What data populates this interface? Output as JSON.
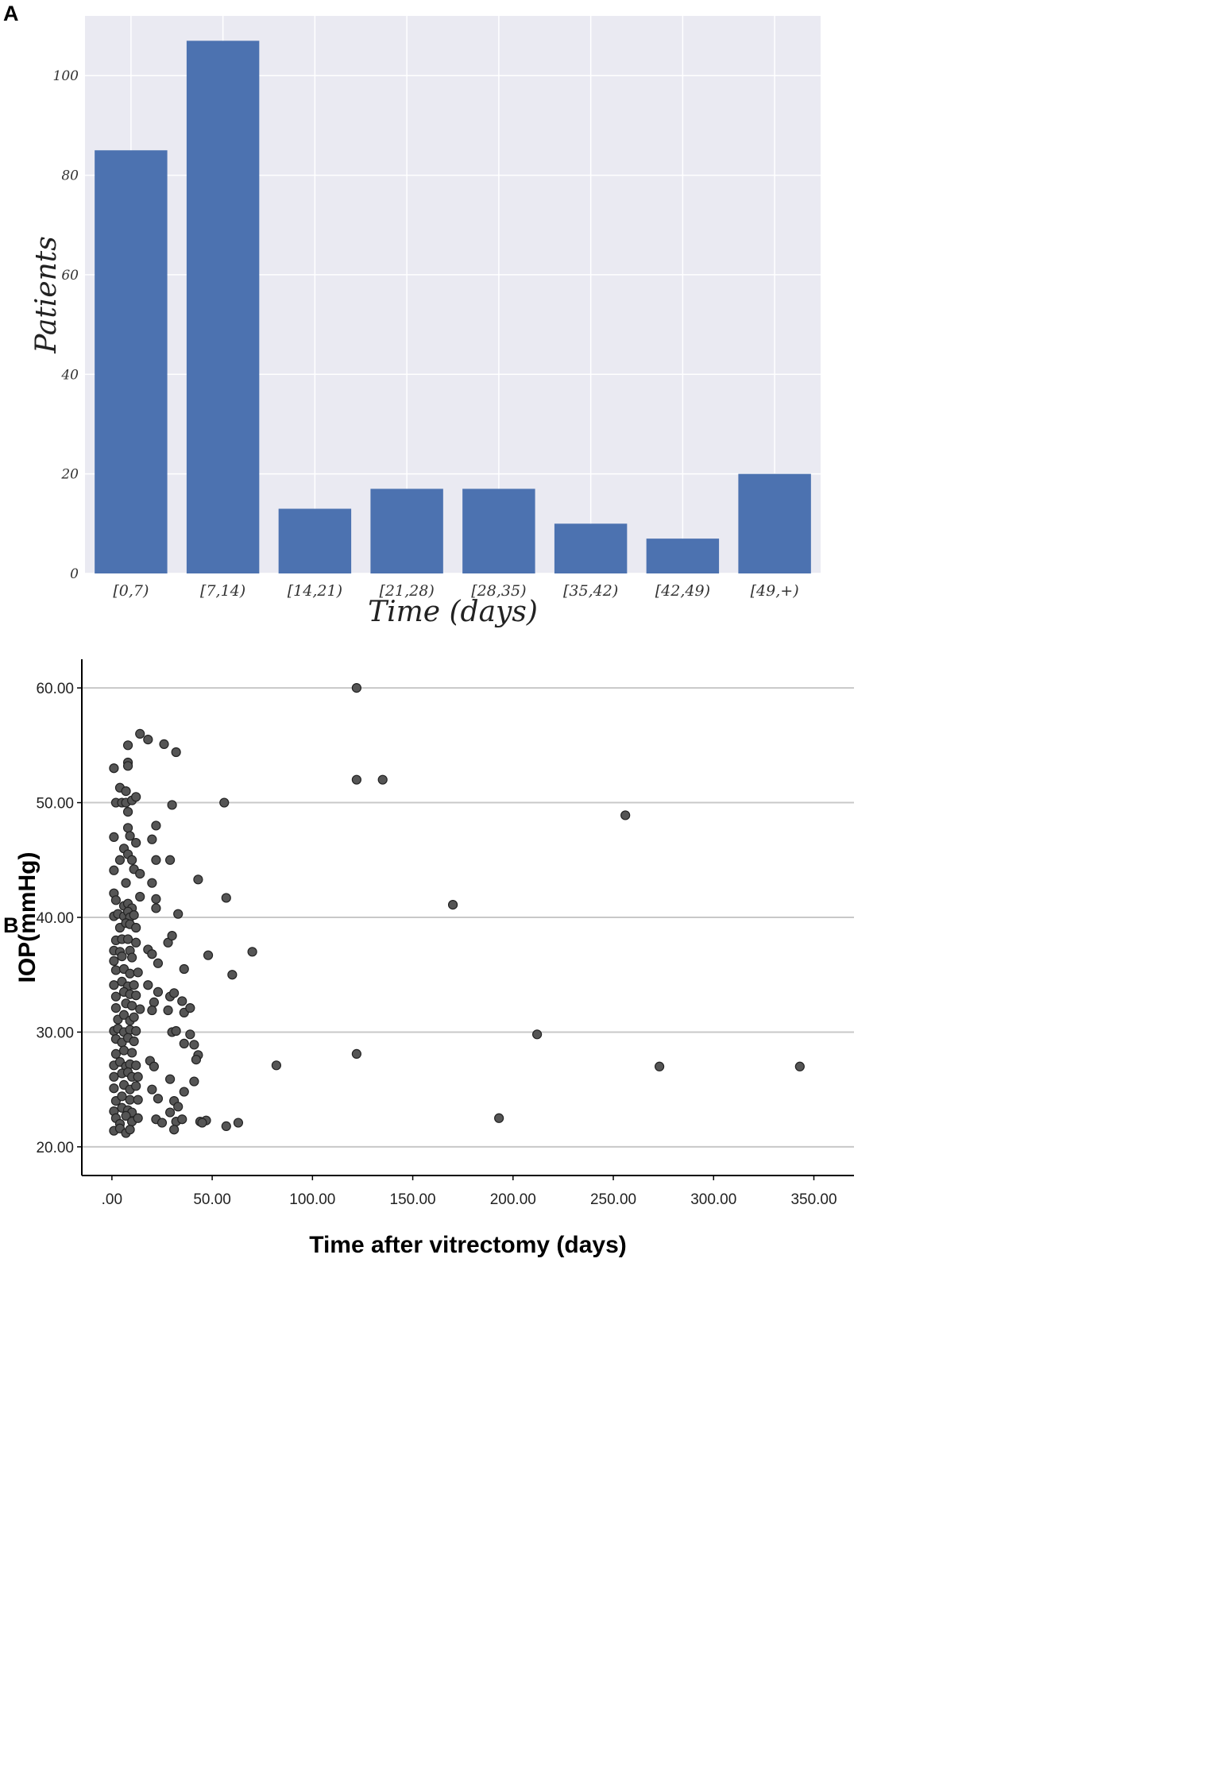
{
  "panels": {
    "a_letter": "A",
    "b_letter": "B"
  },
  "chart_data": [
    {
      "type": "bar",
      "title": "",
      "xlabel": "Time (days)",
      "ylabel": "Patients",
      "categories": [
        "[0,7)",
        "[7,14)",
        "[14,21)",
        "[21,28)",
        "[28,35)",
        "[35,42)",
        "[42,49)",
        "[49,+)"
      ],
      "values": [
        85,
        107,
        13,
        17,
        17,
        10,
        7,
        20
      ],
      "ylim": [
        0,
        112
      ],
      "yticks": [
        0,
        20,
        40,
        60,
        80,
        100
      ],
      "grid": true,
      "bar_color": "#4C72B0",
      "background": "#EAEAF2"
    },
    {
      "type": "scatter",
      "title": "",
      "xlabel": "Time after vitrectomy (days)",
      "ylabel": "IOP(mmHg)",
      "xlim": [
        -15,
        370
      ],
      "ylim": [
        17.5,
        62.5
      ],
      "xticks": [
        0,
        50,
        100,
        150,
        200,
        250,
        300,
        350
      ],
      "xtick_labels": [
        ".00",
        "50.00",
        "100.00",
        "150.00",
        "200.00",
        "250.00",
        "300.00",
        "350.00"
      ],
      "yticks": [
        20,
        30,
        40,
        50,
        60
      ],
      "ytick_labels": [
        "20.00",
        "30.00",
        "40.00",
        "50.00",
        "60.00"
      ],
      "grid": "horizontal",
      "point_color": "#555555",
      "points": [
        [
          122,
          60
        ],
        [
          14,
          56
        ],
        [
          18,
          55.5
        ],
        [
          26,
          55.1
        ],
        [
          8,
          55
        ],
        [
          32,
          54.4
        ],
        [
          1,
          53
        ],
        [
          8,
          53.5
        ],
        [
          8,
          53.2
        ],
        [
          4,
          51.3
        ],
        [
          7,
          51
        ],
        [
          122,
          52
        ],
        [
          135,
          52
        ],
        [
          2,
          50
        ],
        [
          5,
          50
        ],
        [
          7,
          50
        ],
        [
          10,
          50.2
        ],
        [
          12,
          50.5
        ],
        [
          30,
          49.8
        ],
        [
          56,
          50
        ],
        [
          256,
          48.9
        ],
        [
          8,
          49.2
        ],
        [
          1,
          47
        ],
        [
          8,
          47.8
        ],
        [
          9,
          47.1
        ],
        [
          22,
          48
        ],
        [
          20,
          46.8
        ],
        [
          4,
          45
        ],
        [
          6,
          46
        ],
        [
          8,
          45.5
        ],
        [
          10,
          45
        ],
        [
          12,
          46.5
        ],
        [
          22,
          45
        ],
        [
          29,
          45
        ],
        [
          1,
          44.1
        ],
        [
          7,
          43
        ],
        [
          11,
          44.2
        ],
        [
          14,
          43.8
        ],
        [
          20,
          43
        ],
        [
          43,
          43.3
        ],
        [
          1,
          42.1
        ],
        [
          2,
          41.5
        ],
        [
          6,
          41
        ],
        [
          8,
          41.2
        ],
        [
          10,
          40.8
        ],
        [
          14,
          41.8
        ],
        [
          22,
          41.6
        ],
        [
          57,
          41.7
        ],
        [
          170,
          41.1
        ],
        [
          1,
          40.1
        ],
        [
          3,
          40.3
        ],
        [
          6,
          40.1
        ],
        [
          8,
          40.5
        ],
        [
          9,
          40
        ],
        [
          11,
          40.2
        ],
        [
          22,
          40.8
        ],
        [
          33,
          40.3
        ],
        [
          4,
          39.1
        ],
        [
          7,
          39.5
        ],
        [
          9,
          39.4
        ],
        [
          12,
          39.1
        ],
        [
          2,
          38
        ],
        [
          5,
          38.1
        ],
        [
          8,
          38.1
        ],
        [
          12,
          37.8
        ],
        [
          28,
          37.8
        ],
        [
          30,
          38.4
        ],
        [
          1,
          37.1
        ],
        [
          4,
          37
        ],
        [
          9,
          37.1
        ],
        [
          18,
          37.2
        ],
        [
          70,
          37
        ],
        [
          1,
          36.2
        ],
        [
          5,
          36.6
        ],
        [
          10,
          36.5
        ],
        [
          20,
          36.8
        ],
        [
          23,
          36
        ],
        [
          48,
          36.7
        ],
        [
          2,
          35.4
        ],
        [
          6,
          35.5
        ],
        [
          9,
          35.1
        ],
        [
          13,
          35.2
        ],
        [
          36,
          35.5
        ],
        [
          60,
          35
        ],
        [
          1,
          34.1
        ],
        [
          5,
          34.4
        ],
        [
          8,
          34
        ],
        [
          11,
          34.1
        ],
        [
          18,
          34.1
        ],
        [
          2,
          33.1
        ],
        [
          6,
          33.5
        ],
        [
          9,
          33.3
        ],
        [
          12,
          33.2
        ],
        [
          23,
          33.5
        ],
        [
          29,
          33.1
        ],
        [
          31,
          33.4
        ],
        [
          2,
          32.1
        ],
        [
          7,
          32.5
        ],
        [
          10,
          32.3
        ],
        [
          14,
          32
        ],
        [
          21,
          32.6
        ],
        [
          35,
          32.7
        ],
        [
          3,
          31.1
        ],
        [
          6,
          31.5
        ],
        [
          9,
          31
        ],
        [
          11,
          31.3
        ],
        [
          28,
          31.9
        ],
        [
          20,
          31.9
        ],
        [
          36,
          31.7
        ],
        [
          39,
          32.1
        ],
        [
          1,
          30.1
        ],
        [
          3,
          30.3
        ],
        [
          6,
          30
        ],
        [
          9,
          30.2
        ],
        [
          12,
          30.1
        ],
        [
          30,
          30
        ],
        [
          32,
          30.1
        ],
        [
          39,
          29.8
        ],
        [
          2,
          29.4
        ],
        [
          5,
          29.1
        ],
        [
          8,
          29.5
        ],
        [
          11,
          29.2
        ],
        [
          36,
          29
        ],
        [
          212,
          29.8
        ],
        [
          2,
          28.1
        ],
        [
          6,
          28.4
        ],
        [
          10,
          28.2
        ],
        [
          41,
          28.9
        ],
        [
          43,
          28
        ],
        [
          122,
          28.1
        ],
        [
          1,
          27.1
        ],
        [
          4,
          27.4
        ],
        [
          7,
          27
        ],
        [
          9,
          27.2
        ],
        [
          12,
          27.1
        ],
        [
          19,
          27.5
        ],
        [
          21,
          27
        ],
        [
          42,
          27.6
        ],
        [
          82,
          27.1
        ],
        [
          273,
          27
        ],
        [
          343,
          27
        ],
        [
          1,
          26.1
        ],
        [
          5,
          26.4
        ],
        [
          8,
          26.5
        ],
        [
          10,
          26.1
        ],
        [
          13,
          26.1
        ],
        [
          1,
          25.1
        ],
        [
          6,
          25.4
        ],
        [
          9,
          25
        ],
        [
          12,
          25.3
        ],
        [
          20,
          25
        ],
        [
          29,
          25.9
        ],
        [
          36,
          24.8
        ],
        [
          41,
          25.7
        ],
        [
          2,
          24
        ],
        [
          5,
          24.4
        ],
        [
          9,
          24.1
        ],
        [
          13,
          24.1
        ],
        [
          23,
          24.2
        ],
        [
          31,
          24
        ],
        [
          1,
          23.1
        ],
        [
          5,
          23.4
        ],
        [
          8,
          23.2
        ],
        [
          10,
          23
        ],
        [
          33,
          23.5
        ],
        [
          29,
          23
        ],
        [
          2,
          22.5
        ],
        [
          4,
          22
        ],
        [
          7,
          22.7
        ],
        [
          10,
          22.2
        ],
        [
          13,
          22.5
        ],
        [
          22,
          22.4
        ],
        [
          25,
          22.1
        ],
        [
          32,
          22.2
        ],
        [
          35,
          22.4
        ],
        [
          44,
          22.2
        ],
        [
          47,
          22.3
        ],
        [
          193,
          22.5
        ],
        [
          1,
          21.4
        ],
        [
          4,
          21.6
        ],
        [
          7,
          21.2
        ],
        [
          9,
          21.5
        ],
        [
          31,
          21.5
        ],
        [
          57,
          21.8
        ],
        [
          63,
          22.1
        ],
        [
          45,
          22.1
        ]
      ]
    }
  ]
}
